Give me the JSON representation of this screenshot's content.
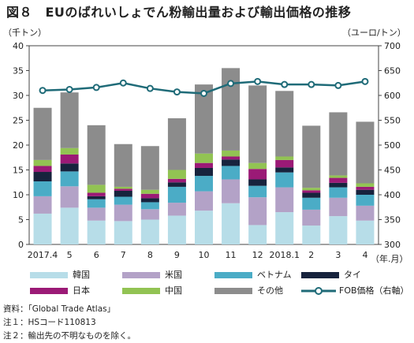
{
  "title": "図８　EUのばれいしょでん粉輸出量および輸出価格の推移",
  "notes": [
    "資料：「Global Trade Atlas」",
    "注１：HSコード110813",
    "注２：輸出先の不明なものを除く。"
  ],
  "colors": {
    "korea": "#b7dde8",
    "usa": "#b3a2c7",
    "vietnam": "#4bacc6",
    "thailand": "#17233d",
    "japan": "#9b1a76",
    "china": "#92c353",
    "other": "#8c8c8c",
    "fob": "#1f6b78"
  },
  "chart_data": {
    "type": "bar",
    "stacked": true,
    "ylabel": "（千トン）",
    "y2label": "（ユーロ/トン）",
    "xlabel": "（年.月）",
    "ylim": [
      0,
      40
    ],
    "yticks": [
      0,
      5,
      10,
      15,
      20,
      25,
      30,
      35,
      40
    ],
    "y2lim": [
      300,
      700
    ],
    "y2ticks": [
      300,
      350,
      400,
      450,
      500,
      550,
      600,
      650,
      700
    ],
    "categories": [
      "2017.4",
      "5",
      "6",
      "7",
      "8",
      "9",
      "10",
      "11",
      "12",
      "2018.1",
      "2",
      "3",
      "4"
    ],
    "series": [
      {
        "name": "韓国",
        "key": "korea",
        "values": [
          6.2,
          7.4,
          4.8,
          4.7,
          5.0,
          5.8,
          6.8,
          8.3,
          3.9,
          6.5,
          3.8,
          5.7,
          4.8
        ]
      },
      {
        "name": "米国",
        "key": "usa",
        "values": [
          3.5,
          4.3,
          2.6,
          3.3,
          2.1,
          2.6,
          3.9,
          4.8,
          5.6,
          5.0,
          3.2,
          3.7,
          3.0
        ]
      },
      {
        "name": "ベトナム",
        "key": "vietnam",
        "values": [
          3.0,
          3.0,
          1.7,
          1.6,
          1.4,
          3.2,
          3.1,
          2.7,
          2.3,
          3.0,
          2.4,
          2.1,
          2.2
        ]
      },
      {
        "name": "タイ",
        "key": "thailand",
        "values": [
          1.9,
          1.6,
          0.6,
          1.2,
          0.8,
          0.9,
          1.6,
          1.3,
          1.3,
          1.0,
          1.0,
          0.9,
          1.0
        ]
      },
      {
        "name": "日本",
        "key": "japan",
        "values": [
          1.2,
          1.8,
          0.7,
          0.4,
          0.9,
          0.7,
          1.0,
          0.6,
          2.1,
          1.5,
          0.5,
          1.0,
          0.6
        ]
      },
      {
        "name": "中国",
        "key": "china",
        "values": [
          1.2,
          1.3,
          1.6,
          0.4,
          0.8,
          1.8,
          1.9,
          1.2,
          1.2,
          0.7,
          0.5,
          0.5,
          0.7
        ]
      },
      {
        "name": "その他",
        "key": "other",
        "values": [
          10.5,
          11.2,
          12.0,
          8.6,
          8.8,
          10.4,
          13.9,
          16.6,
          15.6,
          13.2,
          12.5,
          12.7,
          12.4
        ]
      }
    ],
    "line": {
      "name": "FOB価格（右軸）",
      "axis": "right",
      "values": [
        610,
        612,
        616,
        625,
        614,
        607,
        604,
        624,
        628,
        622,
        622,
        620,
        628
      ]
    },
    "legend": [
      "韓国",
      "米国",
      "ベトナム",
      "タイ",
      "日本",
      "中国",
      "その他",
      "FOB価格（右軸）"
    ]
  }
}
